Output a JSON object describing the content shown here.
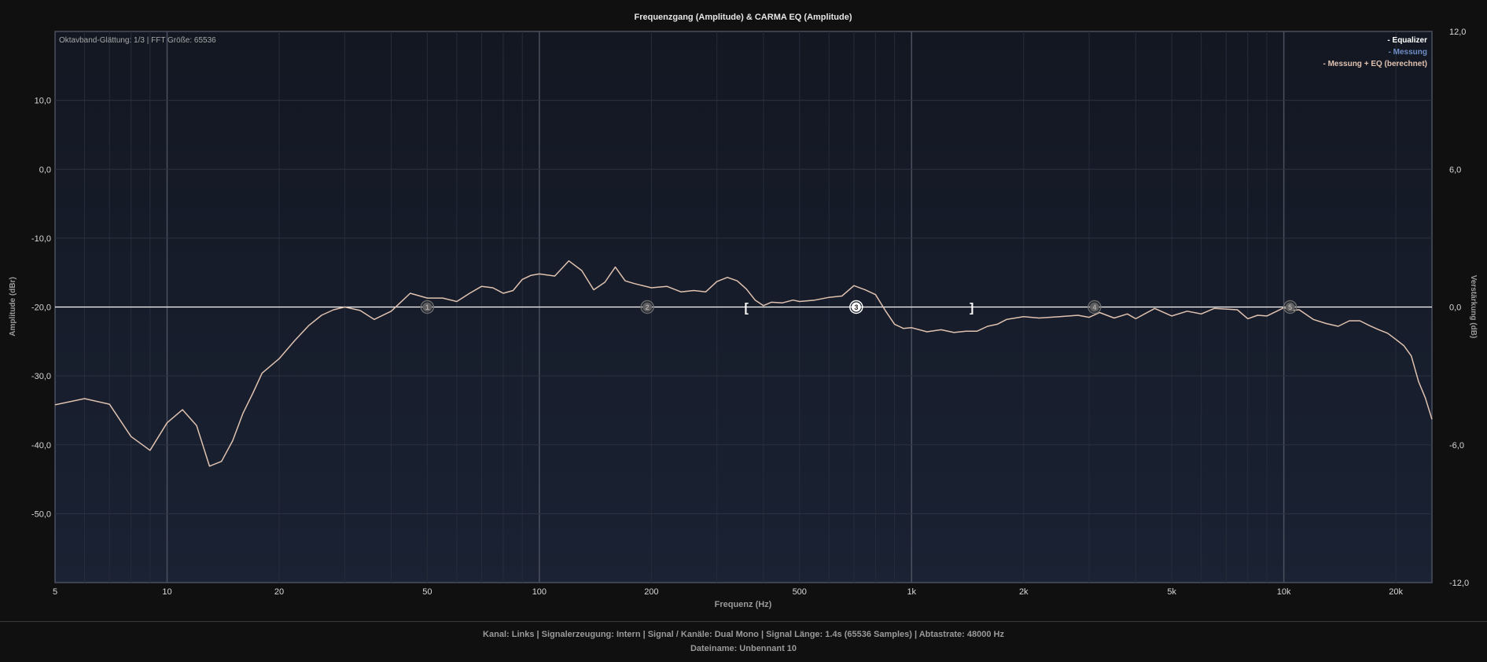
{
  "chart_data": {
    "type": "line",
    "title": "Frequenzgang (Amplitude) & CARMA EQ (Amplitude)",
    "info_text": "Oktavband-Glättung: 1/3 | FFT Größe: 65536",
    "xlabel": "Frequenz (Hz)",
    "ylabel": "Amplitude (dBr)",
    "ylabel_right": "Verstärkung (dB)",
    "x_scale": "log",
    "xlim": [
      5,
      25000
    ],
    "ylim": [
      -60,
      20
    ],
    "ylim_right": [
      -12,
      12
    ],
    "grid": true,
    "legend_position": "top-right",
    "x_ticks": [
      {
        "value": 5,
        "label": "5"
      },
      {
        "value": 10,
        "label": "10"
      },
      {
        "value": 20,
        "label": "20"
      },
      {
        "value": 50,
        "label": "50"
      },
      {
        "value": 100,
        "label": "100"
      },
      {
        "value": 200,
        "label": "200"
      },
      {
        "value": 500,
        "label": "500"
      },
      {
        "value": 1000,
        "label": "1k"
      },
      {
        "value": 2000,
        "label": "2k"
      },
      {
        "value": 5000,
        "label": "5k"
      },
      {
        "value": 10000,
        "label": "10k"
      },
      {
        "value": 20000,
        "label": "20k"
      }
    ],
    "y_ticks_left": [
      "10,0",
      "0,0",
      "-10,0",
      "-20,0",
      "-30,0",
      "-40,0",
      "-50,0"
    ],
    "y_tick_values_left": [
      10,
      0,
      -10,
      -20,
      -30,
      -40,
      -50
    ],
    "y_ticks_right": [
      "12,0",
      "6,0",
      "0,0",
      "-6,0",
      "-12,0"
    ],
    "y_tick_values_right": [
      12,
      6,
      0,
      -6,
      -12
    ],
    "series": [
      {
        "name": "Equalizer",
        "color": "#ffffff",
        "axis": "right",
        "x": [
          5,
          25000
        ],
        "y": [
          0,
          0
        ]
      },
      {
        "name": "Messung",
        "color": "#6f8fc7",
        "axis": "left",
        "x": [],
        "y": []
      },
      {
        "name": "Messung + EQ (berechnet)",
        "color": "#e0c2b0",
        "axis": "left",
        "x": [
          5,
          6,
          7,
          8,
          9,
          10,
          11,
          12,
          13,
          14,
          15,
          16,
          17,
          18,
          20,
          22,
          24,
          26,
          28,
          30,
          33,
          36,
          40,
          45,
          50,
          55,
          60,
          65,
          70,
          75,
          80,
          85,
          90,
          95,
          100,
          110,
          120,
          130,
          140,
          150,
          160,
          170,
          180,
          200,
          220,
          240,
          260,
          280,
          300,
          320,
          340,
          360,
          380,
          400,
          420,
          450,
          480,
          500,
          550,
          600,
          650,
          700,
          750,
          800,
          850,
          900,
          950,
          1000,
          1100,
          1200,
          1300,
          1400,
          1500,
          1600,
          1700,
          1800,
          2000,
          2200,
          2500,
          2800,
          3000,
          3200,
          3500,
          3800,
          4000,
          4500,
          5000,
          5500,
          6000,
          6500,
          7000,
          7500,
          8000,
          8500,
          9000,
          9500,
          10000,
          10500,
          11000,
          12000,
          13000,
          14000,
          15000,
          16000,
          17000,
          18000,
          19000,
          20000,
          21000,
          22000,
          23000,
          24000,
          25000
        ],
        "y": [
          -34.2,
          -33.3,
          -34.1,
          -38.8,
          -40.8,
          -36.8,
          -34.9,
          -37.2,
          -43.1,
          -42.4,
          -39.4,
          -35.4,
          -32.5,
          -29.6,
          -27.5,
          -24.9,
          -22.7,
          -21.2,
          -20.4,
          -20.0,
          -20.5,
          -21.8,
          -20.6,
          -18.0,
          -18.7,
          -18.7,
          -19.2,
          -18.0,
          -17.0,
          -17.2,
          -18.0,
          -17.6,
          -16.0,
          -15.4,
          -15.2,
          -15.5,
          -13.3,
          -14.7,
          -17.5,
          -16.4,
          -14.2,
          -16.2,
          -16.6,
          -17.2,
          -17.0,
          -17.8,
          -17.6,
          -17.8,
          -16.3,
          -15.7,
          -16.2,
          -17.4,
          -19.0,
          -19.8,
          -19.3,
          -19.4,
          -19.0,
          -19.2,
          -19.0,
          -18.6,
          -18.4,
          -16.9,
          -17.5,
          -18.2,
          -20.5,
          -22.5,
          -23.1,
          -23.0,
          -23.6,
          -23.3,
          -23.7,
          -23.5,
          -23.5,
          -22.8,
          -22.5,
          -21.8,
          -21.4,
          -21.6,
          -21.4,
          -21.2,
          -21.5,
          -20.8,
          -21.6,
          -21.0,
          -21.7,
          -20.2,
          -21.3,
          -20.6,
          -21.0,
          -20.2,
          -20.3,
          -20.4,
          -21.7,
          -21.2,
          -21.3,
          -20.7,
          -20.1,
          -20.5,
          -20.4,
          -21.8,
          -22.4,
          -22.8,
          -22.0,
          -22.0,
          -22.7,
          -23.3,
          -23.8,
          -24.7,
          -25.6,
          -27.1,
          -30.8,
          -33.2,
          -36.3
        ]
      }
    ],
    "eq_points": [
      {
        "label": "1",
        "x": 50,
        "gain": 0
      },
      {
        "label": "2",
        "x": 195,
        "gain": 0
      },
      {
        "label": "3",
        "x": 710,
        "gain": 0
      },
      {
        "label": "4",
        "x": 3100,
        "gain": 0
      },
      {
        "label": "5",
        "x": 10400,
        "gain": 0
      }
    ],
    "selection_range": {
      "start_label": "[",
      "end_label": "]",
      "x_start": 360,
      "x_end": 1450
    }
  },
  "status": {
    "line1": "Kanal: Links  |  Signalerzeugung: Intern  |  Signal / Kanäle: Dual Mono  |  Signal Länge: 1.4s (65536 Samples)  |  Abtastrate: 48000 Hz",
    "line2": "Dateiname: Unbennant 10"
  }
}
